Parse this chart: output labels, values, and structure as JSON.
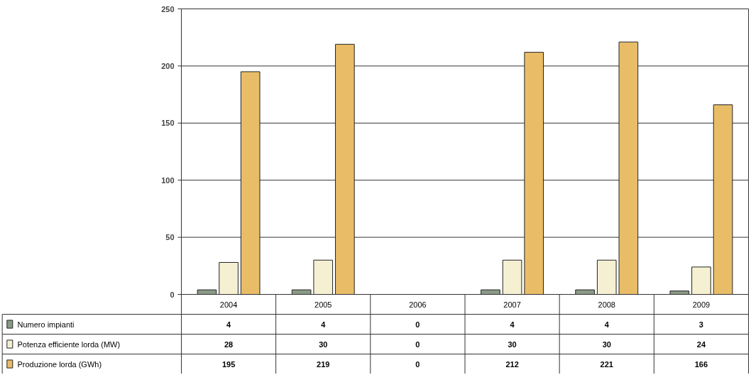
{
  "chart_data": {
    "type": "bar",
    "categories": [
      "2004",
      "2005",
      "2006",
      "2007",
      "2008",
      "2009"
    ],
    "series": [
      {
        "name": "Numero impianti",
        "color": "#8a9a86",
        "values": [
          4,
          4,
          0,
          4,
          4,
          3
        ]
      },
      {
        "name": "Potenza efficiente lorda (MW)",
        "color": "#f5f0d2",
        "values": [
          28,
          30,
          0,
          30,
          30,
          24
        ]
      },
      {
        "name": "Produzione lorda (GWh)",
        "color": "#e9bd68",
        "values": [
          195,
          219,
          0,
          212,
          221,
          166
        ]
      }
    ],
    "ylim": [
      0,
      250
    ],
    "yticks": [
      0,
      50,
      100,
      150,
      200,
      250
    ],
    "grid": "y",
    "legend": "bottom left",
    "data_labels": true
  }
}
